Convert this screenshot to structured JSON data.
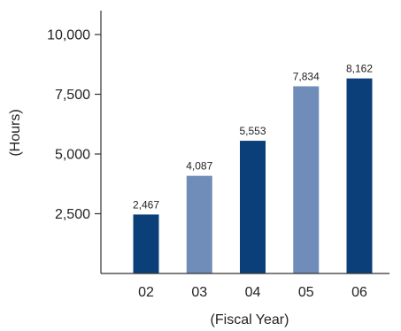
{
  "chart_data": {
    "type": "bar",
    "categories": [
      "02",
      "03",
      "04",
      "05",
      "06"
    ],
    "values": [
      2467,
      4087,
      5553,
      7834,
      8162
    ],
    "value_labels": [
      "2,467",
      "4,087",
      "5,553",
      "7,834",
      "8,162"
    ],
    "xlabel": "(Fiscal Year)",
    "ylabel": "(Hours)",
    "ylim": [
      0,
      11000
    ],
    "yticks": [
      2500,
      5000,
      7500,
      10000
    ],
    "ytick_labels": [
      "2,500",
      "5,000",
      "7,500",
      "10,000"
    ],
    "grid": false,
    "bar_colors": [
      "#0b3f7a",
      "#6f8db8",
      "#0b3f7a",
      "#6f8db8",
      "#0b3f7a"
    ],
    "axis_color": "#333333"
  }
}
